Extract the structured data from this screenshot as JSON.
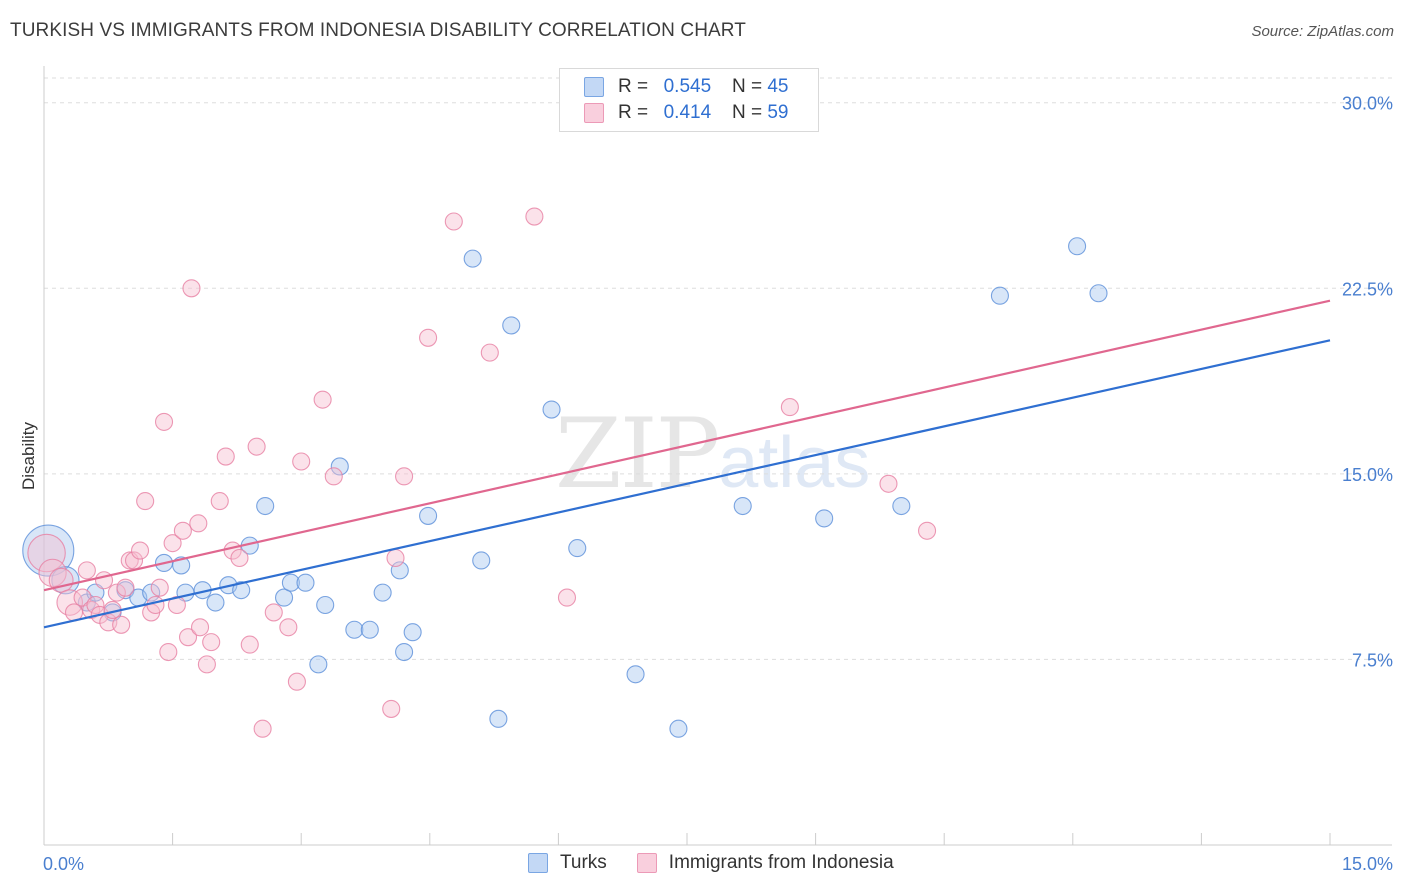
{
  "title": "TURKISH VS IMMIGRANTS FROM INDONESIA DISABILITY CORRELATION CHART",
  "source": "Source: ZipAtlas.com",
  "watermark": {
    "zip": "ZIP",
    "atlas": "atlas"
  },
  "legend": {
    "rows": [
      {
        "r_label": "R =",
        "r_value": "0.545",
        "n_label": "N =",
        "n_value": "45"
      },
      {
        "r_label": "R =",
        "r_value": "0.414",
        "n_label": "N =",
        "n_value": "59"
      }
    ]
  },
  "bottom_legend": [
    "Turks",
    "Immigrants from Indonesia"
  ],
  "chart_data": {
    "type": "scatter",
    "title": "TURKISH VS IMMIGRANTS FROM INDONESIA DISABILITY CORRELATION CHART",
    "xlabel": "",
    "ylabel": "Disability",
    "xlim": [
      0,
      15
    ],
    "ylim": [
      0,
      31
    ],
    "x_tick_labels": [
      "0.0%",
      "15.0%"
    ],
    "y_ticks": [
      7.5,
      15.0,
      22.5,
      30.0
    ],
    "y_tick_labels": [
      "7.5%",
      "15.0%",
      "22.5%",
      "30.0%"
    ],
    "grid": true,
    "legend_position": "top-center",
    "series": [
      {
        "name": "Turks",
        "color": "#5b8fd9",
        "fill": "#a9c7f0",
        "r": 0.545,
        "n": 45,
        "trend": {
          "x": [
            0,
            15
          ],
          "y": [
            8.8,
            20.4
          ]
        },
        "points": [
          [
            0.05,
            11.9,
            3
          ],
          [
            0.25,
            10.7,
            1.6
          ],
          [
            0.5,
            9.8,
            1
          ],
          [
            0.6,
            10.2,
            1
          ],
          [
            0.8,
            9.4,
            1
          ],
          [
            0.95,
            10.3,
            1
          ],
          [
            1.1,
            10.0,
            1
          ],
          [
            1.25,
            10.2,
            1
          ],
          [
            1.4,
            11.4,
            1
          ],
          [
            1.6,
            11.3,
            1
          ],
          [
            1.65,
            10.2,
            1
          ],
          [
            1.85,
            10.3,
            1
          ],
          [
            2.0,
            9.8,
            1
          ],
          [
            2.15,
            10.5,
            1
          ],
          [
            2.3,
            10.3,
            1
          ],
          [
            2.4,
            12.1,
            1
          ],
          [
            2.58,
            13.7,
            1
          ],
          [
            2.8,
            10.0,
            1
          ],
          [
            2.88,
            10.6,
            1
          ],
          [
            3.05,
            10.6,
            1
          ],
          [
            3.2,
            7.3,
            1
          ],
          [
            3.28,
            9.7,
            1
          ],
          [
            3.45,
            15.3,
            1
          ],
          [
            3.62,
            8.7,
            1
          ],
          [
            3.8,
            8.7,
            1
          ],
          [
            3.95,
            10.2,
            1
          ],
          [
            4.15,
            11.1,
            1
          ],
          [
            4.2,
            7.8,
            1
          ],
          [
            4.3,
            8.6,
            1
          ],
          [
            4.48,
            13.3,
            1
          ],
          [
            5.0,
            23.7,
            1
          ],
          [
            5.1,
            11.5,
            1
          ],
          [
            5.3,
            5.1,
            1
          ],
          [
            5.45,
            21.0,
            1
          ],
          [
            5.92,
            17.6,
            1
          ],
          [
            6.22,
            12.0,
            1
          ],
          [
            6.9,
            6.9,
            1
          ],
          [
            7.4,
            4.7,
            1
          ],
          [
            8.15,
            13.7,
            1
          ],
          [
            9.1,
            13.2,
            1
          ],
          [
            10.0,
            13.7,
            1
          ],
          [
            11.15,
            22.2,
            1
          ],
          [
            12.05,
            24.2,
            1
          ],
          [
            12.3,
            22.3,
            1
          ]
        ]
      },
      {
        "name": "Immigrants from Indonesia",
        "color": "#e77fa2",
        "fill": "#f7bfd1",
        "r": 0.414,
        "n": 59,
        "trend": {
          "x": [
            0,
            15
          ],
          "y": [
            10.3,
            22.0
          ]
        },
        "points": [
          [
            0.03,
            11.8,
            2.2
          ],
          [
            0.1,
            11.0,
            1.6
          ],
          [
            0.2,
            10.7,
            1.4
          ],
          [
            0.3,
            9.8,
            1.5
          ],
          [
            0.35,
            9.4,
            1
          ],
          [
            0.45,
            10.0,
            1
          ],
          [
            0.5,
            11.1,
            1
          ],
          [
            0.55,
            9.5,
            1
          ],
          [
            0.6,
            9.7,
            1
          ],
          [
            0.65,
            9.3,
            1
          ],
          [
            0.7,
            10.7,
            1
          ],
          [
            0.75,
            9.0,
            1
          ],
          [
            0.8,
            9.5,
            1
          ],
          [
            0.85,
            10.2,
            1
          ],
          [
            0.9,
            8.9,
            1
          ],
          [
            0.95,
            10.4,
            1
          ],
          [
            1.0,
            11.5,
            1
          ],
          [
            1.05,
            11.5,
            1
          ],
          [
            1.12,
            11.9,
            1
          ],
          [
            1.18,
            13.9,
            1
          ],
          [
            1.25,
            9.4,
            1
          ],
          [
            1.3,
            9.7,
            1
          ],
          [
            1.35,
            10.4,
            1
          ],
          [
            1.4,
            17.1,
            1
          ],
          [
            1.45,
            7.8,
            1
          ],
          [
            1.5,
            12.2,
            1
          ],
          [
            1.55,
            9.7,
            1
          ],
          [
            1.62,
            12.7,
            1
          ],
          [
            1.68,
            8.4,
            1
          ],
          [
            1.72,
            22.5,
            1
          ],
          [
            1.8,
            13.0,
            1
          ],
          [
            1.82,
            8.8,
            1
          ],
          [
            1.9,
            7.3,
            1
          ],
          [
            1.95,
            8.2,
            1
          ],
          [
            2.05,
            13.9,
            1
          ],
          [
            2.12,
            15.7,
            1
          ],
          [
            2.2,
            11.9,
            1
          ],
          [
            2.28,
            11.6,
            1
          ],
          [
            2.4,
            8.1,
            1
          ],
          [
            2.48,
            16.1,
            1
          ],
          [
            2.55,
            4.7,
            1
          ],
          [
            2.68,
            9.4,
            1
          ],
          [
            2.85,
            8.8,
            1
          ],
          [
            2.95,
            6.6,
            1
          ],
          [
            3.0,
            15.5,
            1
          ],
          [
            3.25,
            18.0,
            1
          ],
          [
            3.38,
            14.9,
            1
          ],
          [
            4.05,
            5.5,
            1
          ],
          [
            4.1,
            11.6,
            1
          ],
          [
            4.2,
            14.9,
            1
          ],
          [
            4.48,
            20.5,
            1
          ],
          [
            4.78,
            25.2,
            1
          ],
          [
            5.2,
            19.9,
            1
          ],
          [
            5.72,
            25.4,
            1
          ],
          [
            6.1,
            10.0,
            1
          ],
          [
            8.7,
            17.7,
            1
          ],
          [
            9.85,
            14.6,
            1
          ],
          [
            10.3,
            12.7,
            1
          ]
        ]
      }
    ]
  }
}
